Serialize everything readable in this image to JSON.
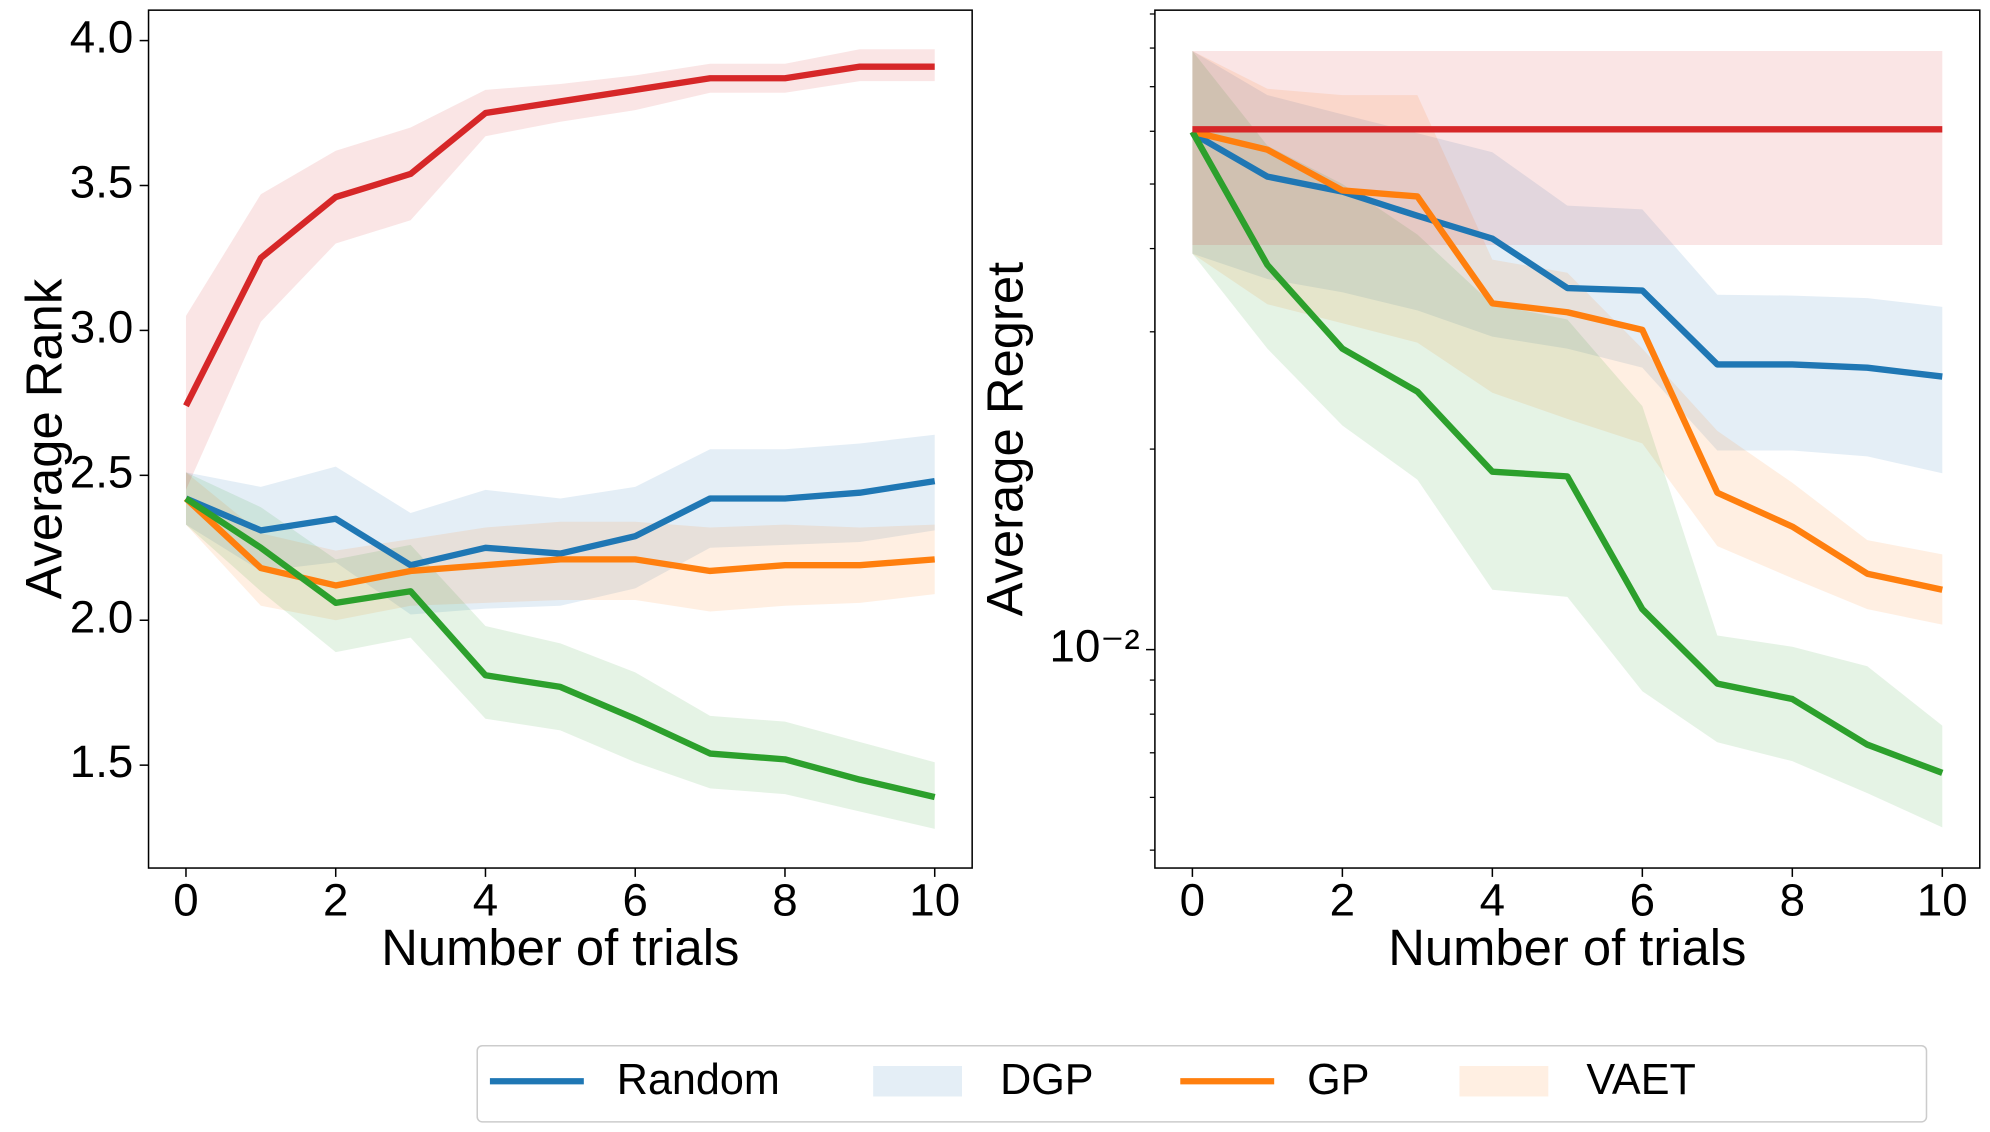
{
  "chart_data": [
    {
      "type": "line",
      "xlabel": "Number of trials",
      "ylabel": "Average Rank",
      "x": [
        0,
        1,
        2,
        3,
        4,
        5,
        6,
        7,
        8,
        9,
        10
      ],
      "xlim": [
        -0.5,
        10.5
      ],
      "xticks": [
        0,
        2,
        4,
        6,
        8,
        10
      ],
      "ylim": [
        1.145,
        4.105
      ],
      "yticks": [
        1.5,
        {
          "value": 2,
          "label": "2.0"
        },
        2.5,
        {
          "value": 3,
          "label": "3.0"
        },
        3.5,
        {
          "value": 4,
          "label": "4.0"
        }
      ],
      "ylog": false,
      "series": [
        {
          "color": "#1f77b4",
          "values": [
            2.42,
            2.31,
            2.35,
            2.19,
            2.25,
            2.23,
            2.29,
            2.42,
            2.42,
            2.44,
            2.48
          ],
          "lower": [
            2.33,
            2.17,
            2.2,
            2.02,
            2.04,
            2.05,
            2.11,
            2.25,
            2.26,
            2.27,
            2.31
          ],
          "upper": [
            2.51,
            2.46,
            2.53,
            2.37,
            2.45,
            2.42,
            2.46,
            2.59,
            2.59,
            2.61,
            2.64
          ]
        },
        {
          "color": "#ff7f0e",
          "values": [
            2.42,
            2.18,
            2.12,
            2.17,
            2.19,
            2.21,
            2.21,
            2.17,
            2.19,
            2.19,
            2.21
          ],
          "lower": [
            2.33,
            2.05,
            2.0,
            2.05,
            2.06,
            2.07,
            2.07,
            2.03,
            2.05,
            2.06,
            2.09
          ],
          "upper": [
            2.51,
            2.3,
            2.24,
            2.28,
            2.32,
            2.34,
            2.34,
            2.32,
            2.33,
            2.32,
            2.33
          ]
        },
        {
          "color": "#2ca02c",
          "values": [
            2.42,
            2.25,
            2.06,
            2.1,
            1.81,
            1.77,
            1.66,
            1.54,
            1.52,
            1.45,
            1.39
          ],
          "lower": [
            2.33,
            2.1,
            1.89,
            1.94,
            1.66,
            1.62,
            1.51,
            1.42,
            1.4,
            1.34,
            1.28
          ],
          "upper": [
            2.51,
            2.39,
            2.21,
            2.26,
            1.98,
            1.92,
            1.82,
            1.67,
            1.65,
            1.58,
            1.51
          ]
        },
        {
          "color": "#d62728",
          "values": [
            2.74,
            3.25,
            3.46,
            3.54,
            3.75,
            3.79,
            3.83,
            3.87,
            3.87,
            3.91,
            3.91
          ],
          "lower": [
            2.45,
            3.03,
            3.3,
            3.38,
            3.67,
            3.72,
            3.76,
            3.82,
            3.82,
            3.86,
            3.86
          ],
          "upper": [
            3.05,
            3.47,
            3.62,
            3.7,
            3.83,
            3.85,
            3.88,
            3.92,
            3.92,
            3.97,
            3.97
          ]
        }
      ]
    },
    {
      "type": "line",
      "xlabel": "Number of trials",
      "ylabel": "Average Regret",
      "x": [
        0,
        1,
        2,
        3,
        4,
        5,
        6,
        7,
        8,
        9,
        10
      ],
      "xlim": [
        -0.5,
        10.5
      ],
      "xticks": [
        0,
        2,
        4,
        6,
        8,
        10
      ],
      "ylim": [
        0.0047,
        0.0912
      ],
      "yticks": [
        {
          "value": 0.01,
          "label": "10⁻²"
        }
      ],
      "ylog": true,
      "yminorticks": [
        0.005,
        0.006,
        0.007,
        0.008,
        0.009,
        0.02,
        0.03,
        0.04,
        0.05,
        0.06,
        0.07,
        0.08,
        0.09
      ],
      "series": [
        {
          "color": "#1f77b4",
          "values": [
            0.0596,
            0.0513,
            0.0487,
            0.0448,
            0.0414,
            0.0349,
            0.0346,
            0.0268,
            0.0268,
            0.0265,
            0.0257
          ],
          "lower": [
            0.0393,
            0.036,
            0.0344,
            0.0323,
            0.0295,
            0.0283,
            0.0265,
            0.0199,
            0.0199,
            0.0195,
            0.0184
          ],
          "upper": [
            0.0792,
            0.068,
            0.0636,
            0.0596,
            0.0558,
            0.0464,
            0.0458,
            0.0341,
            0.034,
            0.0337,
            0.0327
          ]
        },
        {
          "color": "#ff7f0e",
          "values": [
            0.0599,
            0.0563,
            0.0489,
            0.0479,
            0.0331,
            0.0321,
            0.0302,
            0.0172,
            0.0153,
            0.013,
            0.0123
          ],
          "lower": [
            0.0393,
            0.033,
            0.0309,
            0.0289,
            0.0243,
            0.0222,
            0.0204,
            0.0143,
            0.0128,
            0.0115,
            0.0109
          ],
          "upper": [
            0.0792,
            0.0695,
            0.068,
            0.068,
            0.0385,
            0.0368,
            0.0283,
            0.0213,
            0.0178,
            0.0146,
            0.0139
          ]
        },
        {
          "color": "#2ca02c",
          "values": [
            0.0599,
            0.0378,
            0.0283,
            0.0244,
            0.0185,
            0.0182,
            0.0115,
            0.00889,
            0.00843,
            0.0072,
            0.00653
          ],
          "lower": [
            0.0393,
            0.0283,
            0.0217,
            0.018,
            0.0123,
            0.012,
            0.00866,
            0.00726,
            0.0068,
            0.00609,
            0.00541
          ],
          "upper": [
            0.0792,
            0.0571,
            0.05,
            0.042,
            0.033,
            0.0313,
            0.0232,
            0.0105,
            0.0101,
            0.00944,
            0.00769
          ]
        },
        {
          "color": "#d62728",
          "values": [
            0.0604,
            0.0604,
            0.0604,
            0.0604,
            0.0604,
            0.0604,
            0.0604,
            0.0604,
            0.0604,
            0.0604,
            0.0604
          ],
          "lower": [
            0.0405,
            0.0405,
            0.0405,
            0.0405,
            0.0405,
            0.0405,
            0.0405,
            0.0405,
            0.0405,
            0.0405,
            0.0405
          ],
          "upper": [
            0.0792,
            0.0792,
            0.0792,
            0.0792,
            0.0792,
            0.0792,
            0.0792,
            0.0792,
            0.0792,
            0.0792,
            0.0792
          ]
        }
      ]
    }
  ],
  "legend": {
    "entries": [
      {
        "label": "Random",
        "kind": "line",
        "color": "#1f77b4"
      },
      {
        "label": "DGP",
        "kind": "patch",
        "color": "#1f77b4"
      },
      {
        "label": "GP",
        "kind": "line",
        "color": "#ff7f0e"
      },
      {
        "label": "VAET",
        "kind": "patch",
        "color": "#ff7f0e"
      }
    ]
  }
}
